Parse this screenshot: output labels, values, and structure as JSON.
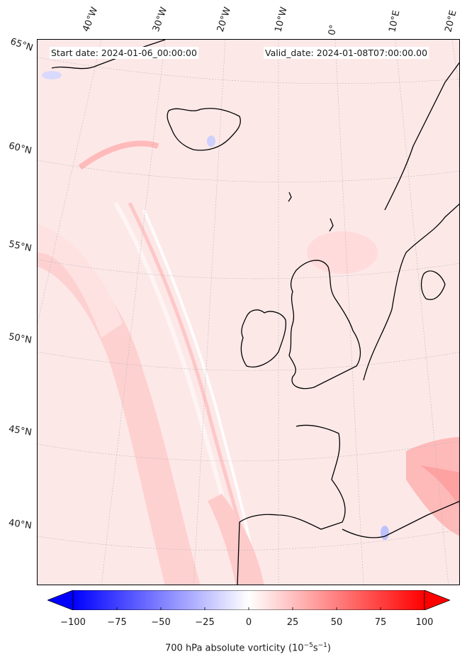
{
  "header": {
    "start_date": "Start date: 2024-01-06_00:00:00",
    "valid_date": "Valid_date: 2024-01-08T07:00:00.00"
  },
  "map": {
    "region": "North Atlantic / Western Europe",
    "lon_labels": [
      "40°W",
      "30°W",
      "20°W",
      "10°W",
      "0°",
      "10°E",
      "20°E"
    ],
    "lat_labels": [
      "65°N",
      "60°N",
      "55°N",
      "50°N",
      "45°N",
      "40°N"
    ],
    "field": "700 hPa absolute vorticity",
    "background_color": "#fde9e9",
    "coastline_color": "#000000",
    "gridline_color": "#b0b0b0"
  },
  "colorbar": {
    "label_text": "700 hPa absolute vorticity (10",
    "label_exp1": "−5",
    "label_mid": "s",
    "label_exp2": "−1",
    "label_end": ")",
    "ticks": [
      "−100",
      "−75",
      "−50",
      "−25",
      "0",
      "25",
      "50",
      "75",
      "100"
    ],
    "tick_values": [
      -100,
      -75,
      -50,
      -25,
      0,
      25,
      50,
      75,
      100
    ],
    "min": -100,
    "max": 100,
    "extend": "both",
    "colormap": "bwr",
    "color_low": "#0000ff",
    "color_mid": "#ffffff",
    "color_high": "#ff0000"
  }
}
